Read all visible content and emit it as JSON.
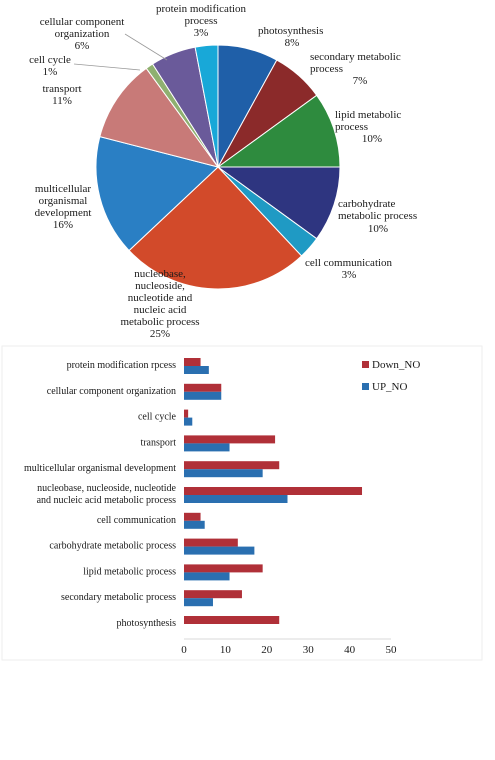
{
  "chart_data": [
    {
      "type": "pie",
      "title": "",
      "slices": [
        {
          "label": "photosynthesis",
          "pct_label": "8%",
          "value": 8,
          "color": "#1f5fa8"
        },
        {
          "label": "secondary metabolic process",
          "pct_label": "7%",
          "value": 7,
          "color": "#8b2a2a"
        },
        {
          "label": "lipid metabolic process",
          "pct_label": "10%",
          "value": 10,
          "color": "#2e8b3e"
        },
        {
          "label": "carbohydrate metabolic process",
          "pct_label": "10%",
          "value": 10,
          "color": "#2e3580"
        },
        {
          "label": "cell communication",
          "pct_label": "3%",
          "value": 3,
          "color": "#1f9ac4"
        },
        {
          "label": "nucleobase, nucleoside, nucleotide and nucleic acid metabolic process",
          "pct_label": "25%",
          "value": 25,
          "color": "#d24a2a"
        },
        {
          "label": "multicellular organismal development",
          "pct_label": "16%",
          "value": 16,
          "color": "#2a7fc4"
        },
        {
          "label": "transport",
          "pct_label": "11%",
          "value": 11,
          "color": "#c87a78"
        },
        {
          "label": "cell cycle",
          "pct_label": "1%",
          "value": 1,
          "color": "#8fb070"
        },
        {
          "label": "cellular component organization",
          "pct_label": "6%",
          "value": 6,
          "color": "#6a5a9a"
        },
        {
          "label": "protein modification process",
          "pct_label": "3%",
          "value": 3,
          "color": "#18a8d8"
        }
      ]
    },
    {
      "type": "bar",
      "orientation": "horizontal",
      "title": "",
      "xlabel": "",
      "ylabel": "",
      "categories": [
        "protein modification rpcess",
        "cellular component organization",
        "cell cycle",
        "transport",
        "multicellular organismal development",
        "nucleobase, nucleoside, nucleotide and nucleic acid metabolic process",
        "cell communication",
        "carbohydrate metabolic process",
        "lipid metabolic process",
        "secondary metabolic process",
        "photosynthesis"
      ],
      "series": [
        {
          "name": "Down_NO",
          "color": "#b03038",
          "values": [
            4,
            9,
            1,
            22,
            23,
            43,
            4,
            13,
            19,
            14,
            23
          ]
        },
        {
          "name": "UP_NO",
          "color": "#2a6fb0",
          "values": [
            6,
            9,
            2,
            11,
            19,
            25,
            5,
            17,
            11,
            7,
            0
          ]
        }
      ],
      "xlim": [
        0,
        50
      ],
      "xticks": [
        0,
        10,
        20,
        30,
        40,
        50
      ],
      "grid": false,
      "legend": "top-right"
    }
  ]
}
